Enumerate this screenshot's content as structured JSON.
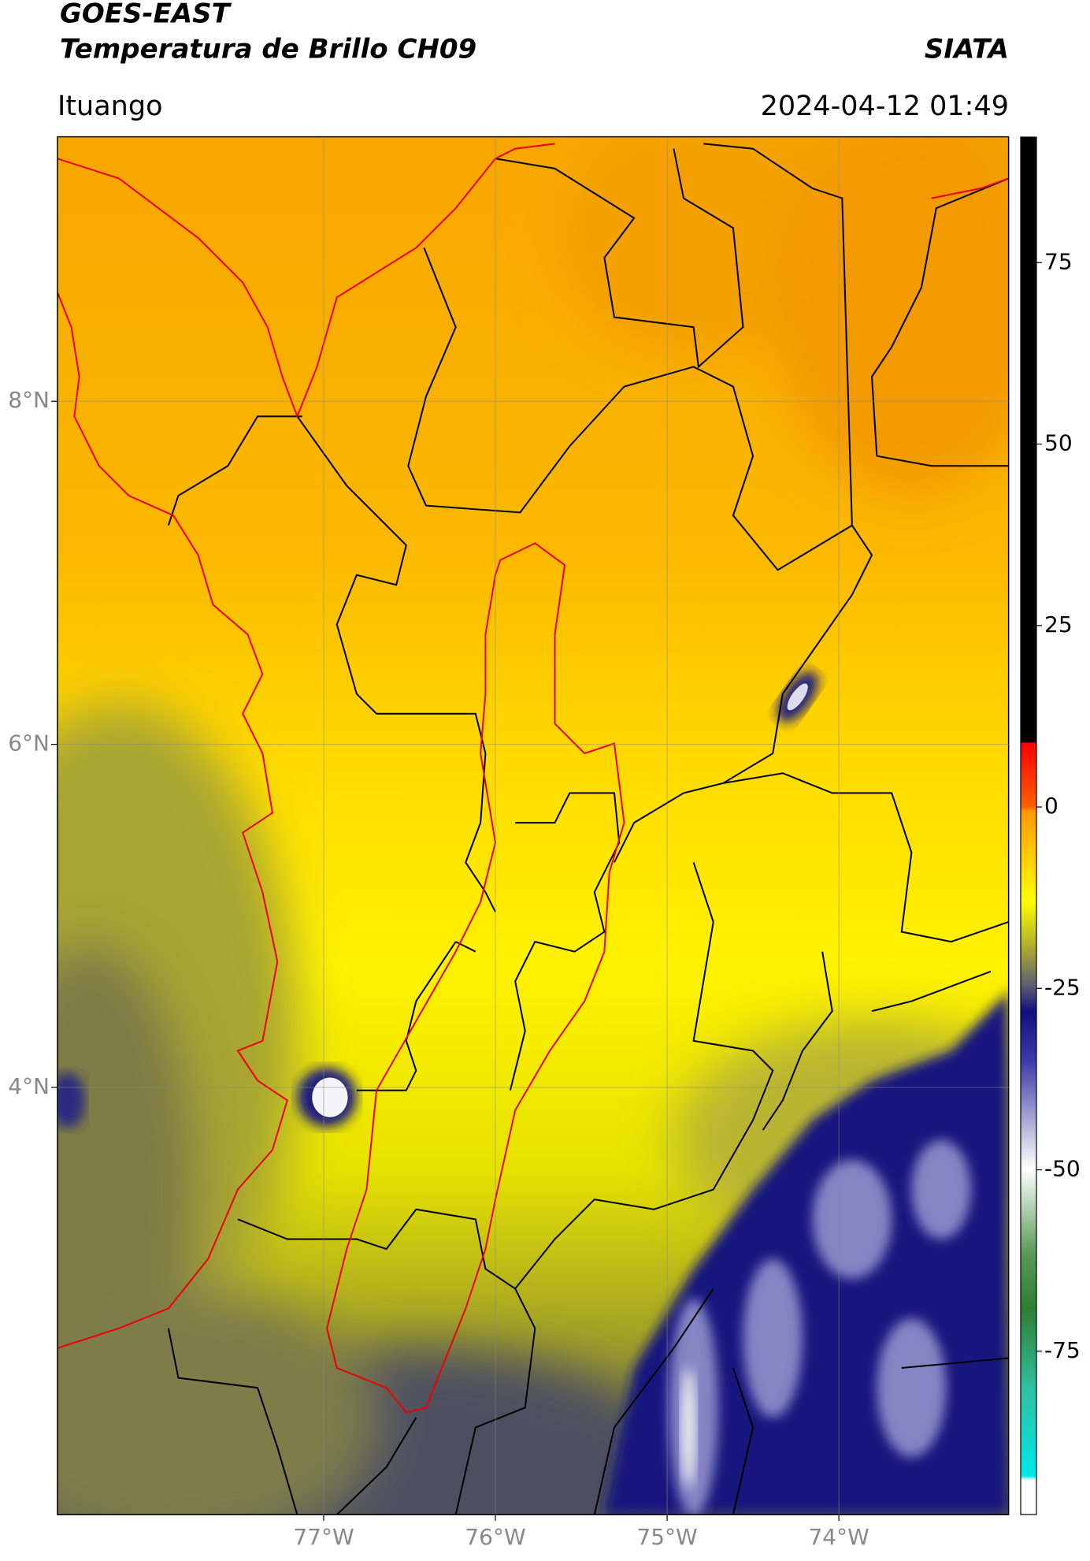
{
  "header": {
    "title_line1": "GOES-EAST",
    "title_line2": "Temperatura de Brillo CH09",
    "org": "SIATA",
    "location": "Ituango",
    "datetime": "2024-04-12 01:49"
  },
  "map": {
    "lonlim": [
      -78.55,
      -73.01
    ],
    "latlim": [
      1.51,
      9.54
    ],
    "lon_ticks": [
      {
        "value": -77,
        "label": "77°W"
      },
      {
        "value": -76,
        "label": "76°W"
      },
      {
        "value": -75,
        "label": "75°W"
      },
      {
        "value": -74,
        "label": "74°W"
      }
    ],
    "lat_ticks": [
      {
        "value": 8,
        "label": "8°N"
      },
      {
        "value": 6,
        "label": "6°N"
      },
      {
        "value": 4,
        "label": "4°N"
      }
    ]
  },
  "colorbar": {
    "lim": [
      -97.5,
      92.3
    ],
    "ticks": [
      75,
      50,
      25,
      0,
      -25,
      -50,
      -75
    ]
  }
}
